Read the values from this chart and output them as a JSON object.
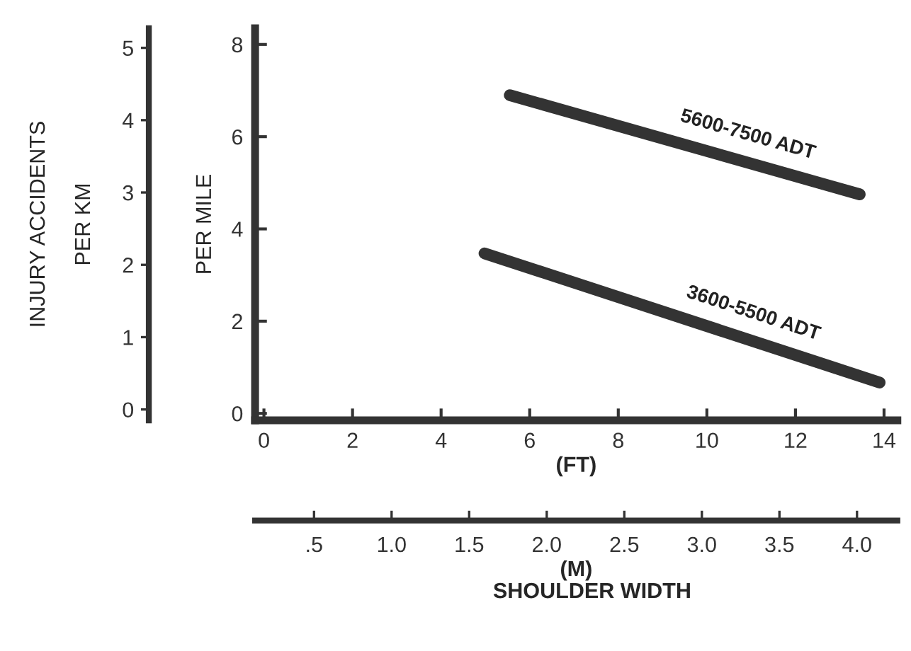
{
  "chart_data": {
    "type": "line",
    "xlabel": "(FT)",
    "ylabel": "PER MILE",
    "y2label": "INJURY ACCIDENTS\nPER KM",
    "x2label": "(M)",
    "annotations": [
      "SHOULDER WIDTH"
    ],
    "xlim": [
      -0.2,
      14.3
    ],
    "xticks": [
      0,
      2,
      4,
      6,
      8,
      10,
      12,
      14
    ],
    "ylim": [
      -0.15,
      8.35
    ],
    "yticks": [
      0,
      2,
      4,
      6,
      8
    ],
    "y2lim": [
      -0.15,
      5.27
    ],
    "y2ticks": [
      0,
      1,
      2,
      3,
      4,
      5
    ],
    "x2lim": [
      0.12,
      4.26
    ],
    "x2ticks": [
      {
        "value": 0.5,
        "label": ".5"
      },
      {
        "value": 1.0,
        "label": "1.0"
      },
      {
        "value": 1.5,
        "label": "1.5"
      },
      {
        "value": 2.0,
        "label": "2.0"
      },
      {
        "value": 2.5,
        "label": "2.5"
      },
      {
        "value": 3.0,
        "label": "3.0"
      },
      {
        "value": 3.5,
        "label": "3.5"
      },
      {
        "value": 4.0,
        "label": "4.0"
      }
    ],
    "grid": false,
    "legend": false,
    "marker": "none",
    "line_style": "solid",
    "series": [
      {
        "name": "5600-7500 ADT",
        "color": "#333333",
        "x": [
          5.55,
          13.45
        ],
        "values": [
          6.9,
          4.75
        ]
      },
      {
        "name": "3600-5500 ADT",
        "color": "#333333",
        "x": [
          4.98,
          13.9
        ],
        "values": [
          3.47,
          0.67
        ]
      }
    ]
  }
}
